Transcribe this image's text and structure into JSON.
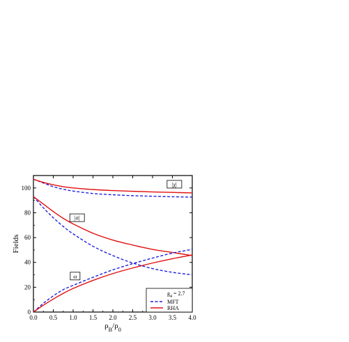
{
  "chart_data": {
    "type": "line",
    "title": "",
    "xlabel": "ρ_B/ρ_0",
    "ylabel": "Fields",
    "xlim": [
      0.0,
      4.0
    ],
    "ylim": [
      0,
      110
    ],
    "xticks": [
      0.0,
      0.5,
      1.0,
      1.5,
      2.0,
      2.5,
      3.0,
      3.5,
      4.0
    ],
    "xtick_labels": [
      "0.0",
      "0.5",
      "1.0",
      "1.5",
      "2.0",
      "2.5",
      "3.0",
      "3.5",
      "4.0"
    ],
    "yticks": [
      0,
      20,
      40,
      60,
      80,
      100
    ],
    "ytick_labels": [
      "0",
      "20",
      "40",
      "60",
      "80",
      "100"
    ],
    "grid": false,
    "legend_position": "bottom-right",
    "legend": {
      "header": "g_4 = 2.7",
      "entries": [
        {
          "label": "MFT",
          "color": "#1f1fe0",
          "style": "dashed"
        },
        {
          "label": "RHA",
          "color": "#e01010",
          "style": "solid"
        }
      ]
    },
    "annotations": [
      {
        "text": "|χ|",
        "x": 3.55,
        "y": 103,
        "boxed": true
      },
      {
        "text": "|σ|",
        "x": 1.1,
        "y": 76,
        "boxed": true
      },
      {
        "text": "ω",
        "x": 1.05,
        "y": 29,
        "boxed": true
      }
    ],
    "series": [
      {
        "group": "chi",
        "method": "MFT",
        "color": "#1f1fe0",
        "style": "dashed",
        "x": [
          0,
          0.25,
          0.5,
          0.75,
          1.0,
          1.5,
          2.0,
          2.5,
          3.0,
          3.5,
          4.0
        ],
        "y": [
          107,
          104,
          101,
          99,
          97.5,
          95.5,
          94.5,
          93.8,
          93.3,
          92.9,
          92.6
        ]
      },
      {
        "group": "chi",
        "method": "RHA",
        "color": "#e01010",
        "style": "solid",
        "x": [
          0,
          0.25,
          0.5,
          0.75,
          1.0,
          1.5,
          2.0,
          2.5,
          3.0,
          3.5,
          4.0
        ],
        "y": [
          107,
          104.5,
          102.5,
          101,
          100,
          98.7,
          97.9,
          97.3,
          96.8,
          96.4,
          96
        ]
      },
      {
        "group": "sigma",
        "method": "MFT",
        "color": "#1f1fe0",
        "style": "dashed",
        "x": [
          0,
          0.25,
          0.5,
          0.75,
          1.0,
          1.5,
          2.0,
          2.5,
          3.0,
          3.5,
          4.0
        ],
        "y": [
          93,
          84,
          76,
          69,
          63,
          53,
          45.5,
          39.5,
          35,
          32,
          30
        ]
      },
      {
        "group": "sigma",
        "method": "RHA",
        "color": "#e01010",
        "style": "solid",
        "x": [
          0,
          0.25,
          0.5,
          0.75,
          1.0,
          1.5,
          2.0,
          2.5,
          3.0,
          3.5,
          4.0
        ],
        "y": [
          93,
          87,
          81,
          75.5,
          71,
          63.5,
          58,
          54,
          50.5,
          48,
          45.5
        ]
      },
      {
        "group": "omega",
        "method": "MFT",
        "color": "#1f1fe0",
        "style": "dashed",
        "x": [
          0,
          0.25,
          0.5,
          0.75,
          1.0,
          1.5,
          2.0,
          2.5,
          3.0,
          3.5,
          4.0
        ],
        "y": [
          0,
          7,
          13,
          18,
          21.5,
          28,
          34,
          39,
          43.5,
          47.5,
          50.5
        ]
      },
      {
        "group": "omega",
        "method": "RHA",
        "color": "#e01010",
        "style": "solid",
        "x": [
          0,
          0.25,
          0.5,
          0.75,
          1.0,
          1.5,
          2.0,
          2.5,
          3.0,
          3.5,
          4.0
        ],
        "y": [
          0,
          5.5,
          10.5,
          15,
          19,
          25.5,
          31,
          35.5,
          39.5,
          43,
          46
        ]
      }
    ]
  }
}
